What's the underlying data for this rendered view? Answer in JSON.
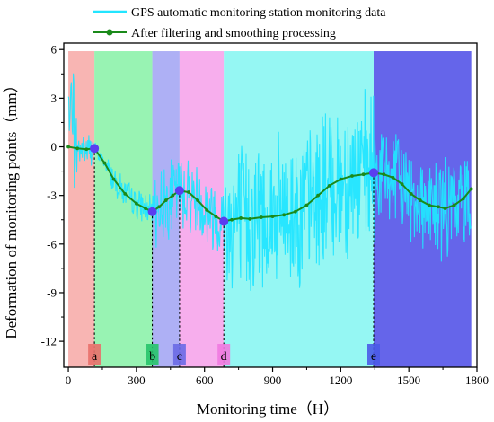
{
  "chart_data": {
    "type": "line",
    "xlabel": "Monitoring time（H）",
    "ylabel": "Deformation of monitoring points（mm）",
    "xlim": [
      -20,
      1800
    ],
    "ylim": [
      -13.6,
      6.4
    ],
    "x_ticks": [
      0,
      300,
      600,
      900,
      1200,
      1500,
      1800
    ],
    "y_ticks": [
      6,
      3,
      0,
      -3,
      -6,
      -9,
      -12
    ],
    "legend": {
      "placement": "top-left"
    },
    "series": [
      {
        "name": "GPS automatic monitoring station monitoring data",
        "color": "#22e5ff",
        "style": "noisy-line"
      },
      {
        "name": "After filtering and smoothing processing",
        "color": "#1a8a1a",
        "style": "line-with-markers",
        "x": [
          0,
          40,
          80,
          115,
          160,
          200,
          250,
          300,
          340,
          370,
          400,
          430,
          460,
          490,
          530,
          570,
          610,
          650,
          685,
          720,
          760,
          800,
          850,
          900,
          950,
          1000,
          1050,
          1100,
          1150,
          1200,
          1250,
          1300,
          1345,
          1390,
          1430,
          1470,
          1510,
          1550,
          1590,
          1630,
          1660,
          1700,
          1740,
          1775
        ],
        "y": [
          0,
          -0.1,
          -0.15,
          -0.1,
          -1.0,
          -2.0,
          -2.9,
          -3.5,
          -3.8,
          -4.0,
          -3.7,
          -3.3,
          -3.0,
          -2.7,
          -2.8,
          -3.3,
          -3.9,
          -4.3,
          -4.6,
          -4.5,
          -4.4,
          -4.45,
          -4.35,
          -4.3,
          -4.2,
          -4.0,
          -3.6,
          -3.0,
          -2.4,
          -2.0,
          -1.8,
          -1.7,
          -1.6,
          -1.7,
          -1.9,
          -2.3,
          -2.9,
          -3.3,
          -3.6,
          -3.7,
          -3.8,
          -3.6,
          -3.2,
          -2.6
        ]
      }
    ],
    "key_points": [
      {
        "label": "a",
        "x": 115,
        "y": -0.1
      },
      {
        "label": "b",
        "x": 370,
        "y": -4.0
      },
      {
        "label": "c",
        "x": 490,
        "y": -2.7
      },
      {
        "label": "d",
        "x": 685,
        "y": -4.6
      },
      {
        "label": "e",
        "x": 1345,
        "y": -1.6
      }
    ],
    "zones": [
      {
        "x0": 0,
        "x1": 115,
        "color": "#f6a3a0"
      },
      {
        "x0": 115,
        "x1": 370,
        "color": "#7ef0a0"
      },
      {
        "x0": 370,
        "x1": 490,
        "color": "#9a9cf2"
      },
      {
        "x0": 490,
        "x1": 685,
        "color": "#f59ae8"
      },
      {
        "x0": 685,
        "x1": 1345,
        "color": "#7af5f0"
      },
      {
        "x0": 1345,
        "x1": 1775,
        "color": "#4a4ae6"
      }
    ],
    "colors": {
      "raw": "#22e5ff",
      "smooth": "#1a8a1a",
      "point": "#5b3df0",
      "label_box_a": "#e8706a",
      "label_box_b": "#27c46a",
      "label_box_c": "#6a6ae6",
      "label_box_d": "#f07ae0",
      "label_box_e": "#4a5ae8"
    }
  }
}
